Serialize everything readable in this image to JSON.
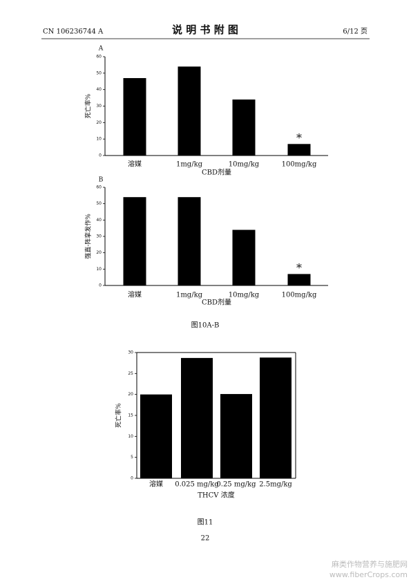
{
  "header": {
    "left": "CN 106236744 A",
    "title": "说 明 书 附 图",
    "right": "6/12 页"
  },
  "chart_data": [
    {
      "type": "bar",
      "panel": "A",
      "ylabel": "死亡率%",
      "xlabel": "CBD剂量",
      "categories": [
        "溶媒",
        "1mg/kg",
        "10mg/kg",
        "100mg/kg"
      ],
      "values": [
        47,
        54,
        34,
        7
      ],
      "color": "#000000",
      "ylim": [
        0,
        60
      ],
      "yticks": [
        0,
        10,
        20,
        30,
        40,
        50,
        60
      ],
      "annotation": "*",
      "significant": [
        false,
        false,
        false,
        true
      ]
    },
    {
      "type": "bar",
      "panel": "B",
      "ylabel": "强直-阵挛发作%",
      "xlabel": "CBD剂量",
      "categories": [
        "溶媒",
        "1mg/kg",
        "10mg/kg",
        "100mg/kg"
      ],
      "values": [
        54,
        54,
        34,
        7
      ],
      "color": "#000000",
      "ylim": [
        0,
        60
      ],
      "yticks": [
        0,
        10,
        20,
        30,
        40,
        50,
        60
      ],
      "annotation": "*",
      "significant": [
        false,
        false,
        false,
        true
      ]
    },
    {
      "type": "bar",
      "ylabel": "死亡率%",
      "xlabel": "THCV 浓度",
      "categories": [
        "溶媒",
        "0.025 mg/kg",
        "0.25 mg/kg",
        "2.5mg/kg"
      ],
      "values": [
        20,
        28.7,
        20.1,
        28.8
      ],
      "color": "#000000",
      "ylim": [
        0,
        30
      ],
      "yticks": [
        0,
        5,
        10,
        15,
        20,
        25,
        30
      ],
      "frame": true
    }
  ],
  "captions": [
    "图10A-B",
    "图11"
  ],
  "page_number": "22",
  "watermark": [
    "麻类作物营养与施肥网",
    "www.fiberCrops.com"
  ]
}
